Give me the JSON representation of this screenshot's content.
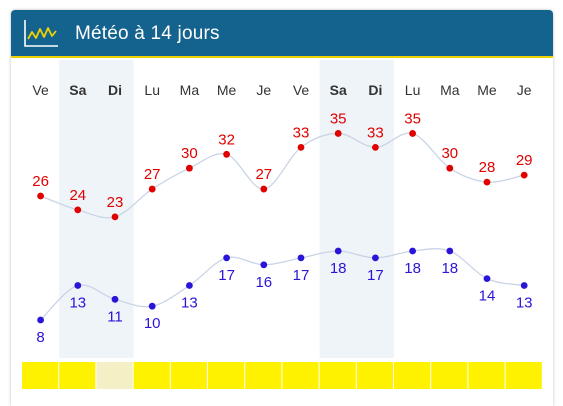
{
  "header": {
    "title": "Météo à 14 jours",
    "icon": "chart-line-icon",
    "background": "#14628e",
    "accent": "#f0d200"
  },
  "forecast": {
    "days": [
      {
        "label": "Ve",
        "weekend": false,
        "max": 26,
        "min": 8,
        "bar": "yellow"
      },
      {
        "label": "Sa",
        "weekend": true,
        "max": 24,
        "min": 13,
        "bar": "yellow"
      },
      {
        "label": "Di",
        "weekend": true,
        "max": 23,
        "min": 11,
        "bar": "pale"
      },
      {
        "label": "Lu",
        "weekend": false,
        "max": 27,
        "min": 10,
        "bar": "yellow"
      },
      {
        "label": "Ma",
        "weekend": false,
        "max": 30,
        "min": 13,
        "bar": "yellow"
      },
      {
        "label": "Me",
        "weekend": false,
        "max": 32,
        "min": 17,
        "bar": "yellow"
      },
      {
        "label": "Je",
        "weekend": false,
        "max": 27,
        "min": 16,
        "bar": "yellow"
      },
      {
        "label": "Ve",
        "weekend": false,
        "max": 33,
        "min": 17,
        "bar": "yellow"
      },
      {
        "label": "Sa",
        "weekend": true,
        "max": 35,
        "min": 18,
        "bar": "yellow"
      },
      {
        "label": "Di",
        "weekend": true,
        "max": 33,
        "min": 17,
        "bar": "yellow"
      },
      {
        "label": "Lu",
        "weekend": false,
        "max": 35,
        "min": 18,
        "bar": "yellow"
      },
      {
        "label": "Ma",
        "weekend": false,
        "max": 30,
        "min": 18,
        "bar": "yellow"
      },
      {
        "label": "Me",
        "weekend": false,
        "max": 28,
        "min": 14,
        "bar": "yellow"
      },
      {
        "label": "Je",
        "weekend": false,
        "max": 29,
        "min": 13,
        "bar": "yellow"
      }
    ]
  },
  "colors": {
    "max_temp": "#e00000",
    "min_temp": "#2a14d8",
    "curve": "#c9d4e6",
    "weekend_bg": "#eef4f8",
    "day_label": "#333333",
    "bar_yellow": "#fff200",
    "bar_pale": "#f4efc4"
  }
}
